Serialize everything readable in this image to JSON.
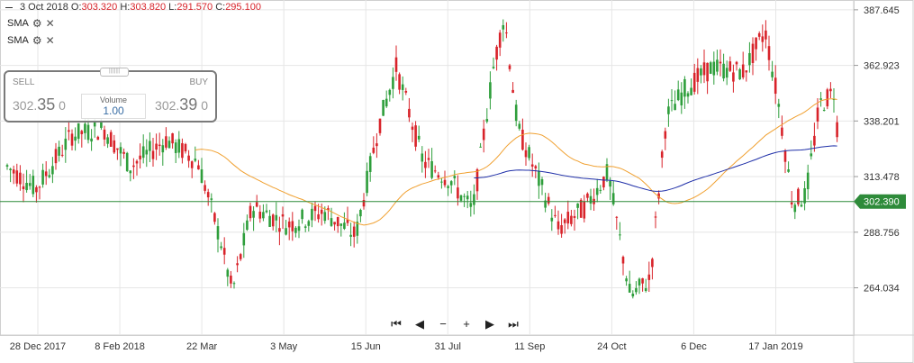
{
  "header": {
    "date": "3 Oct 2018",
    "open_label": "O:",
    "open": "303.320",
    "high_label": "H:",
    "high": "303.820",
    "low_label": "L:",
    "low": "291.570",
    "close_label": "C:",
    "close": "295.100"
  },
  "indicators": [
    {
      "label": "SMA",
      "icon": "gear-icon",
      "remove": "✕",
      "color": "#f0a030"
    },
    {
      "label": "SMA",
      "icon": "gear-icon",
      "remove": "✕",
      "color": "#1f2fa8"
    }
  ],
  "trade_box": {
    "sell_label": "SELL",
    "sell_price_main": "302.",
    "sell_price_big": "35",
    "sell_price_sub": "0",
    "buy_label": "BUY",
    "buy_price_main": "302.",
    "buy_price_big": "39",
    "buy_price_sub": "0",
    "volume_label": "Volume",
    "volume_value": "1.00"
  },
  "nav_controls": {
    "first": "⏮",
    "prev": "◀",
    "zoom_out": "−",
    "zoom_in": "+",
    "next": "▶",
    "last": "⏭"
  },
  "colors": {
    "up": "#2e9e3b",
    "down": "#d8232a",
    "sma_fast": "#f0a030",
    "sma_slow": "#1f2fa8",
    "price_line": "#2e8b3a",
    "grid": "#e6e6e6"
  },
  "chart_data": {
    "type": "candlestick",
    "y_ticks": [
      264.034,
      288.756,
      313.478,
      338.201,
      362.923,
      387.645
    ],
    "ylim": [
      243,
      392
    ],
    "x_tick_labels": [
      "28 Dec 2017",
      "8 Feb 2018",
      "22 Mar",
      "3 May",
      "15 Jun",
      "31 Jul",
      "11 Sep",
      "24 Oct",
      "6 Dec",
      "17 Jan 2019"
    ],
    "current_price": 302.39,
    "current_price_label": "302.390",
    "grid": true
  }
}
